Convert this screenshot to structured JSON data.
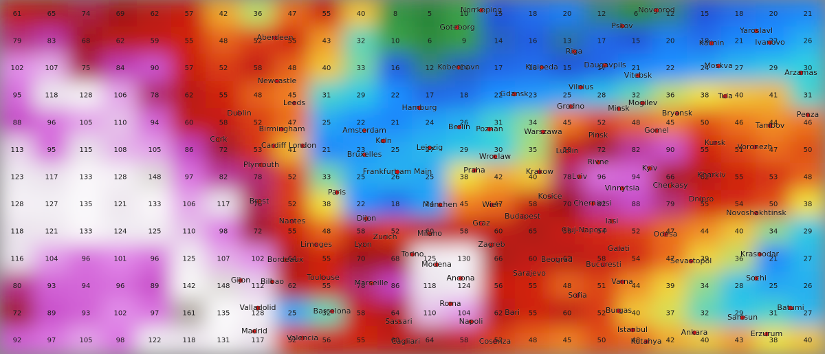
{
  "grid": {
    "rows": [
      [
        61,
        65,
        74,
        69,
        62,
        57,
        42,
        36,
        47,
        55,
        40,
        8,
        5,
        10,
        15,
        18,
        20,
        12,
        6,
        12,
        15,
        18,
        20,
        21
      ],
      [
        79,
        83,
        68,
        62,
        59,
        55,
        48,
        52,
        55,
        43,
        32,
        10,
        6,
        9,
        14,
        16,
        13,
        17,
        15,
        20,
        18,
        21,
        22,
        26
      ],
      [
        102,
        107,
        75,
        84,
        90,
        57,
        52,
        58,
        48,
        40,
        33,
        16,
        12,
        14,
        17,
        18,
        15,
        17,
        21,
        22,
        24,
        27,
        29,
        30
      ],
      [
        95,
        118,
        128,
        106,
        78,
        62,
        55,
        48,
        45,
        31,
        29,
        22,
        17,
        18,
        22,
        23,
        25,
        28,
        32,
        36,
        38,
        40,
        41,
        31
      ],
      [
        88,
        96,
        105,
        110,
        94,
        60,
        58,
        52,
        47,
        25,
        22,
        21,
        24,
        26,
        31,
        34,
        45,
        52,
        48,
        45,
        50,
        46,
        44,
        46
      ],
      [
        113,
        95,
        115,
        108,
        105,
        86,
        72,
        53,
        41,
        21,
        23,
        25,
        27,
        29,
        30,
        35,
        58,
        72,
        82,
        90,
        55,
        51,
        47,
        50
      ],
      [
        123,
        117,
        133,
        128,
        148,
        97,
        82,
        78,
        52,
        33,
        25,
        26,
        25,
        38,
        42,
        40,
        78,
        96,
        94,
        66,
        62,
        55,
        53,
        48
      ],
      [
        128,
        127,
        135,
        121,
        133,
        106,
        117,
        76,
        52,
        38,
        22,
        18,
        24,
        45,
        47,
        58,
        70,
        82,
        88,
        79,
        55,
        54,
        50,
        38
      ],
      [
        118,
        121,
        133,
        124,
        125,
        110,
        98,
        72,
        55,
        48,
        58,
        52,
        60,
        58,
        60,
        65,
        58,
        54,
        52,
        47,
        44,
        40,
        34,
        29
      ],
      [
        116,
        104,
        96,
        101,
        96,
        125,
        107,
        102,
        64,
        55,
        70,
        68,
        125,
        130,
        66,
        60,
        62,
        58,
        54,
        47,
        39,
        36,
        21,
        27
      ],
      [
        80,
        93,
        94,
        96,
        89,
        142,
        148,
        112,
        62,
        55,
        78,
        86,
        118,
        124,
        56,
        55,
        48,
        51,
        44,
        39,
        34,
        28,
        25,
        26
      ],
      [
        72,
        89,
        93,
        102,
        97,
        161,
        135,
        128,
        25,
        32,
        58,
        64,
        110,
        104,
        62,
        55,
        60,
        52,
        40,
        37,
        32,
        29,
        31,
        27
      ],
      [
        92,
        97,
        105,
        98,
        122,
        118,
        131,
        117,
        52,
        56,
        55,
        60,
        64,
        58,
        52,
        48,
        45,
        50,
        48,
        42,
        40,
        43,
        38,
        40
      ]
    ]
  },
  "cities": [
    "Aberdeen",
    "Newcastle",
    "Dublin",
    "Leeds",
    "Birmingham",
    "Cork",
    "Cardiff",
    "London",
    "Plymouth",
    "Brest",
    "Nantes",
    "Amsterdam",
    "Hamburg",
    "Berlin",
    "Koln",
    "Bruxelles",
    "Paris",
    "Leipzig",
    "Frankfurt am Main",
    "Praha",
    "Dijon",
    "Zurich",
    "Munchen",
    "Limoges",
    "Lyon",
    "Bordeaux",
    "Toulouse",
    "Marseille",
    "Torino",
    "Milano",
    "Bilbao",
    "Gijon",
    "Valladolid",
    "Madrid",
    "Barcelona",
    "Valencia",
    "Modena",
    "Ancona",
    "Roma",
    "Napoli",
    "Sassari",
    "Cagliari",
    "Zagreb",
    "Sarajevo",
    "Bari",
    "Cosenza",
    "Graz",
    "Wien",
    "Budapest",
    "Beograd",
    "Sofia",
    "Bucuresti",
    "Cluj-Napoca",
    "Kosice",
    "Krakow",
    "Wroclaw",
    "Poznan",
    "Warszawa",
    "Lublin",
    "Lviv",
    "Rivne",
    "Gdansk",
    "Klaipeda",
    "Riga",
    "Daugavpils",
    "Vilnius",
    "Grodno",
    "Minsk",
    "Vitebsk",
    "Mogilev",
    "Pinsk",
    "Kyiv",
    "Vinnytsia",
    "Cherkasy",
    "Chernivtsi",
    "Iasi",
    "Odesa",
    "Galati",
    "Sevastopol",
    "Varna",
    "Burgas",
    "Istanbul",
    "Kutahya",
    "Ankara",
    "Samsun",
    "Erzurum",
    "Batumi",
    "Sochi",
    "Krasnodar",
    "Novoshakhtinsk",
    "Dnipro",
    "Kharkiv",
    "Kursk",
    "Voronezh",
    "Bryansk",
    "Gomel",
    "Tula",
    "Tambov",
    "Penza",
    "Moskva",
    "Kalinin",
    "Yaroslavl",
    "Ivanovo",
    "Arzamas",
    "Novgorod",
    "Pskov",
    "Goteborg",
    "Kobenhavn",
    "Norrkoping"
  ]
}
